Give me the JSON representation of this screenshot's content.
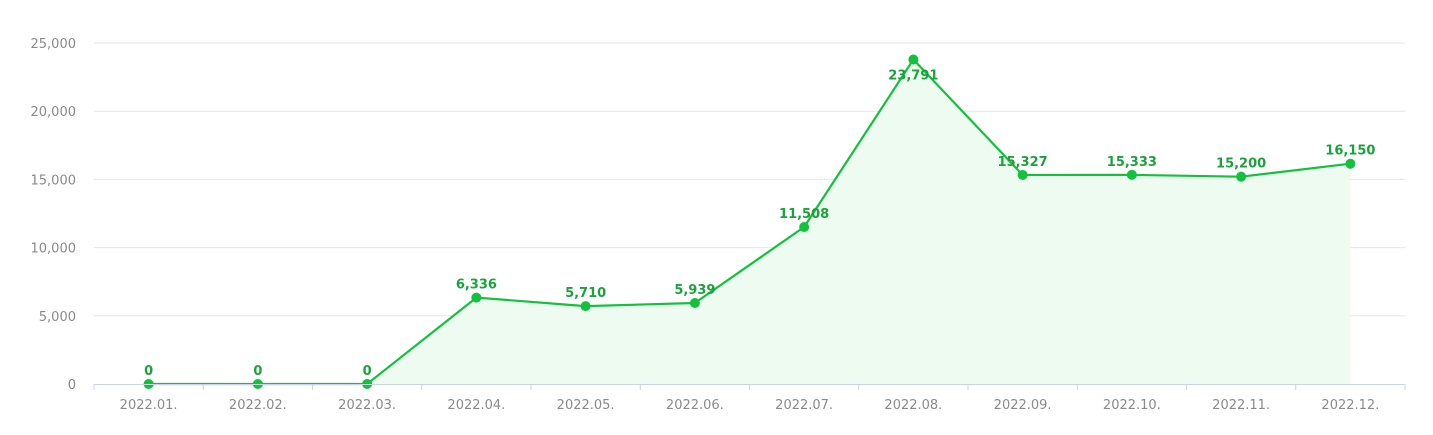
{
  "chart_data": {
    "type": "line",
    "title": "",
    "xlabel": "",
    "ylabel": "",
    "categories": [
      "2022.01.",
      "2022.02.",
      "2022.03.",
      "2022.04.",
      "2022.05.",
      "2022.06.",
      "2022.07.",
      "2022.08.",
      "2022.09.",
      "2022.10.",
      "2022.11.",
      "2022.12."
    ],
    "series": [
      {
        "values": [
          0,
          0,
          0,
          6336,
          5710,
          5939,
          11508,
          23791,
          15327,
          15333,
          15200,
          16150
        ],
        "labels": [
          "0",
          "0",
          "0",
          "6,336",
          "5,710",
          "5,939",
          "11,508",
          "23,791",
          "15,327",
          "15,333",
          "15,200",
          "16,150"
        ],
        "color": "#12c13c",
        "area_fill": "#eefbf0"
      }
    ],
    "ylim": [
      0,
      25000
    ],
    "yticks": [
      0,
      5000,
      10000,
      15000,
      20000,
      25000
    ],
    "ytick_labels": [
      "0",
      "5,000",
      "10,000",
      "15,000",
      "20,000",
      "25,000"
    ],
    "grid": true,
    "legend": "none"
  }
}
